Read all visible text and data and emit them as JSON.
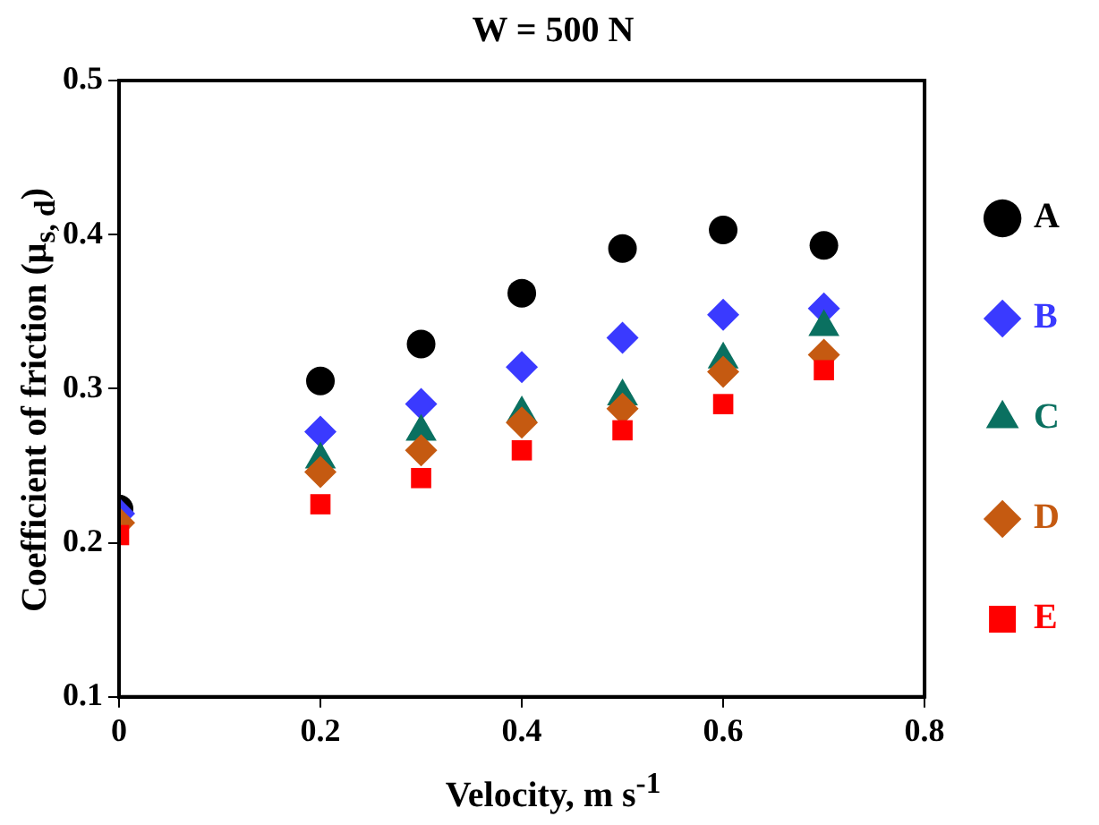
{
  "chart_data": {
    "type": "scatter",
    "title": "W = 500 N",
    "xlabel": "Velocity, m s$^{-1}$",
    "ylabel": "Coefficient of friction (μ$_{s, d}$)",
    "x": [
      0,
      0.2,
      0.3,
      0.4,
      0.5,
      0.6,
      0.7
    ],
    "series": [
      {
        "name": "A",
        "color": "#000000",
        "marker": "circle",
        "values": [
          0.222,
          0.305,
          0.329,
          0.362,
          0.391,
          0.403,
          0.393
        ]
      },
      {
        "name": "B",
        "color": "#3a3aff",
        "marker": "diamond",
        "values": [
          0.219,
          0.272,
          0.29,
          0.314,
          0.333,
          0.348,
          0.352
        ]
      },
      {
        "name": "C",
        "color": "#0a7060",
        "marker": "triangle",
        "values": [
          null,
          0.254,
          0.272,
          0.284,
          0.295,
          0.319,
          0.34
        ]
      },
      {
        "name": "D",
        "color": "#c55a11",
        "marker": "diamond",
        "values": [
          0.213,
          0.246,
          0.26,
          0.278,
          0.287,
          0.311,
          0.322
        ]
      },
      {
        "name": "E",
        "color": "#ff0000",
        "marker": "square",
        "values": [
          0.205,
          0.225,
          0.242,
          0.26,
          0.273,
          0.29,
          0.312
        ]
      }
    ],
    "xlim": [
      0,
      0.8
    ],
    "xticks": [
      0,
      0.2,
      0.4,
      0.6,
      0.8
    ],
    "ylim": [
      0.1,
      0.5
    ],
    "yticks": [
      0.1,
      0.2,
      0.3,
      0.4,
      0.5
    ],
    "grid": false,
    "legend": "right"
  }
}
